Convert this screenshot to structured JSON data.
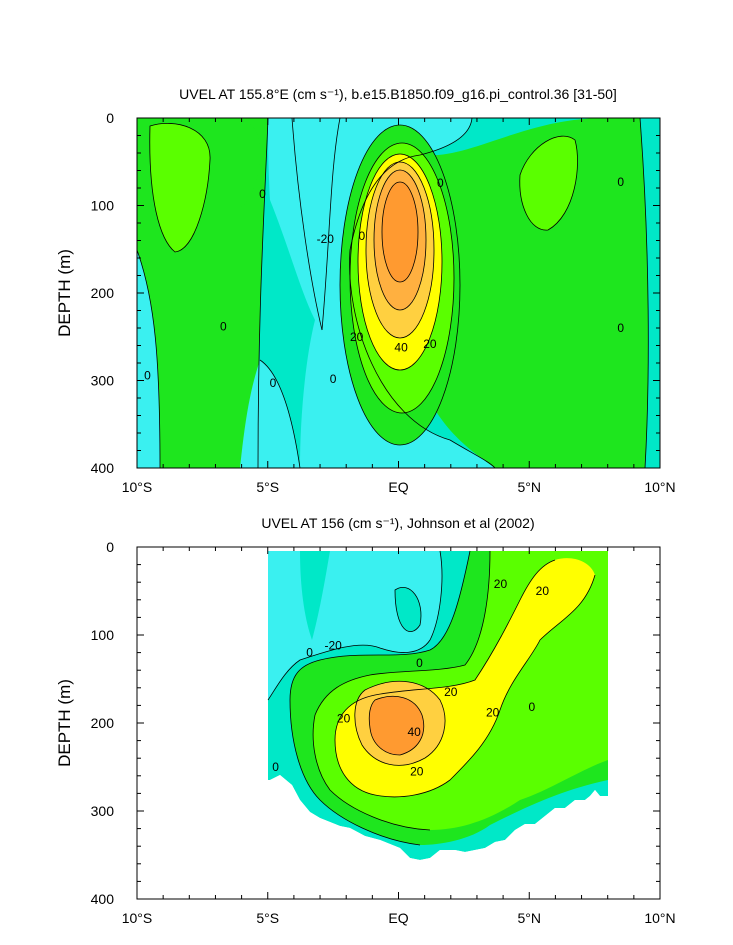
{
  "chart_data": [
    {
      "type": "contour",
      "title": "UVEL AT 155.8°E (cm s⁻¹), b.e15.B1850.f09_g16.pi_control.36 [31-50]",
      "ylabel": "DEPTH (m)",
      "xlabel": "",
      "xlim": [
        -10,
        10
      ],
      "ylim": [
        400,
        0
      ],
      "x_ticks": [
        -10,
        -5,
        0,
        5,
        10
      ],
      "x_tick_labels": [
        "10°S",
        "5°S",
        "EQ",
        "5°N",
        "10°N"
      ],
      "y_ticks": [
        0,
        100,
        200,
        300,
        400
      ],
      "y_tick_labels": [
        "0",
        "100",
        "200",
        "300",
        "400"
      ],
      "contour_interval": 10,
      "contour_labels": [
        {
          "text": "0",
          "lon": -5.2,
          "depth": 87
        },
        {
          "text": "-20",
          "lon": -2.8,
          "depth": 138
        },
        {
          "text": "0",
          "lon": -1.4,
          "depth": 135
        },
        {
          "text": "0",
          "lon": 1.6,
          "depth": 74
        },
        {
          "text": "0",
          "lon": 8.5,
          "depth": 73
        },
        {
          "text": "0",
          "lon": -6.7,
          "depth": 238
        },
        {
          "text": "0",
          "lon": 8.5,
          "depth": 240
        },
        {
          "text": "20",
          "lon": -1.6,
          "depth": 250
        },
        {
          "text": "40",
          "lon": 0.1,
          "depth": 262
        },
        {
          "text": "20",
          "lon": 1.2,
          "depth": 258
        },
        {
          "text": "0",
          "lon": -9.6,
          "depth": 294
        },
        {
          "text": "0",
          "lon": -4.8,
          "depth": 303
        },
        {
          "text": "0",
          "lon": -2.5,
          "depth": 298
        }
      ],
      "core": {
        "lon": 0,
        "depth": 200,
        "max_speed_cm_s": 50
      }
    },
    {
      "type": "contour",
      "title": "UVEL AT 156 (cm s⁻¹), Johnson et al (2002)",
      "ylabel": "DEPTH (m)",
      "xlabel": "",
      "xlim": [
        -10,
        10
      ],
      "ylim": [
        400,
        0
      ],
      "x_ticks": [
        -10,
        -5,
        0,
        5,
        10
      ],
      "x_tick_labels": [
        "10°S",
        "5°S",
        "EQ",
        "5°N",
        "10°N"
      ],
      "y_ticks": [
        0,
        100,
        200,
        300,
        400
      ],
      "y_tick_labels": [
        "0",
        "100",
        "200",
        "300",
        "400"
      ],
      "contour_interval": 10,
      "data_extent_lon": [
        -5,
        8
      ],
      "contour_labels": [
        {
          "text": "-20",
          "lon": -2.5,
          "depth": 112
        },
        {
          "text": "0",
          "lon": -3.4,
          "depth": 120
        },
        {
          "text": "0",
          "lon": 0.8,
          "depth": 132
        },
        {
          "text": "20",
          "lon": 2.0,
          "depth": 165
        },
        {
          "text": "20",
          "lon": -2.1,
          "depth": 195
        },
        {
          "text": "40",
          "lon": 0.6,
          "depth": 210
        },
        {
          "text": "20",
          "lon": 3.6,
          "depth": 188
        },
        {
          "text": "0",
          "lon": 5.1,
          "depth": 182
        },
        {
          "text": "20",
          "lon": 0.7,
          "depth": 255
        },
        {
          "text": "0",
          "lon": -4.7,
          "depth": 250
        },
        {
          "text": "20",
          "lon": 3.9,
          "depth": 42
        },
        {
          "text": "20",
          "lon": 5.5,
          "depth": 50
        }
      ],
      "core": {
        "lon": 0,
        "depth": 205,
        "max_speed_cm_s": 50
      }
    }
  ],
  "colors": {
    "negative": "#3af0f0",
    "zero_band": "#00e8c8",
    "pos_10": "#1ee61e",
    "pos_20": "#5aff00",
    "pos_30": "#ffff00",
    "pos_40": "#ffd040",
    "pos_50": "#ff9a30"
  }
}
